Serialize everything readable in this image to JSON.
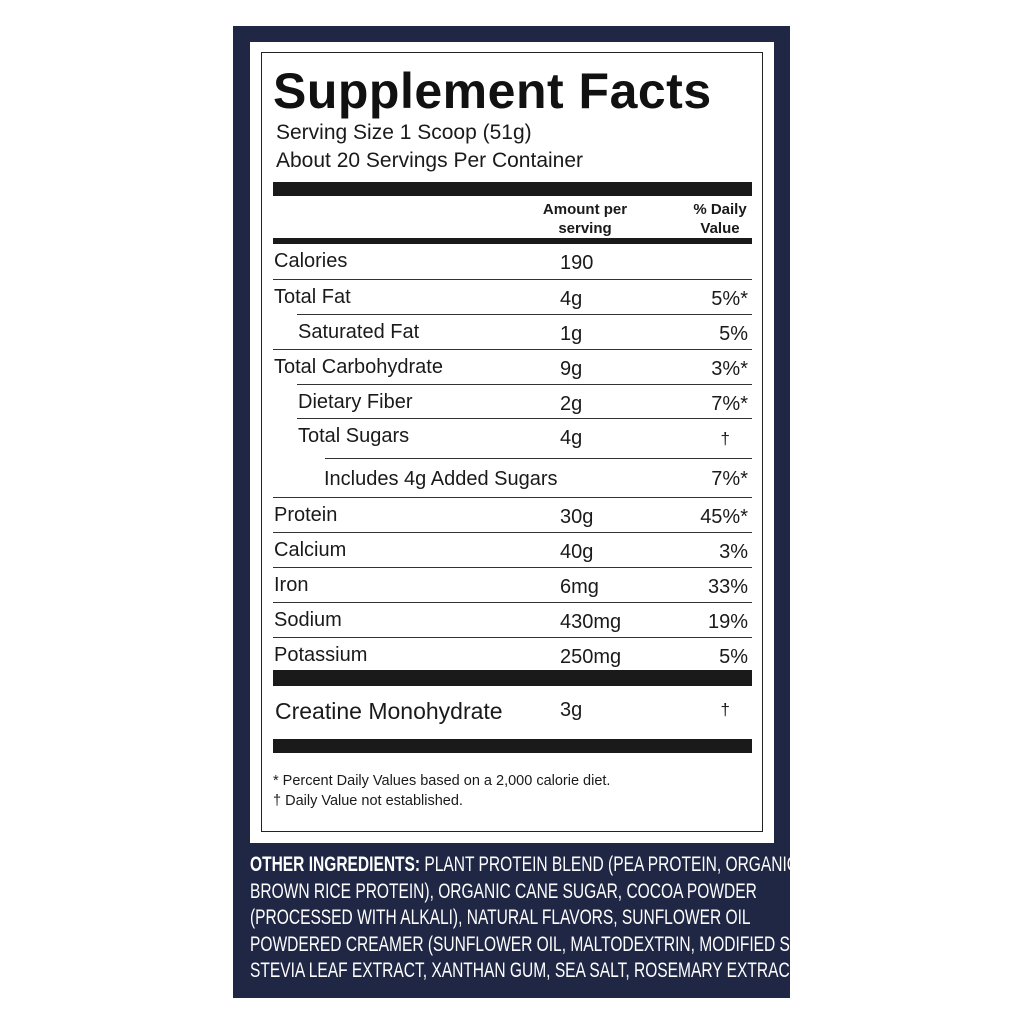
{
  "colors": {
    "navy": "#1f2745",
    "text": "#1a1a1a"
  },
  "label": {
    "title": "Supplement Facts",
    "serving_size": "Serving Size 1 Scoop (51g)",
    "servings_per_container": "About 20 Servings Per Container",
    "header_amount_line1": "Amount per",
    "header_amount_line2": "serving",
    "header_dv_line1": "% Daily",
    "header_dv_line2": "Value",
    "rows": [
      {
        "name": "Calories",
        "amount": "190",
        "dv": ""
      },
      {
        "name": "Total Fat",
        "amount": "4g",
        "dv": "5%*"
      },
      {
        "name": "Saturated Fat",
        "amount": "1g",
        "dv": "5%"
      },
      {
        "name": "Total Carbohydrate",
        "amount": "9g",
        "dv": "3%*"
      },
      {
        "name": "Dietary Fiber",
        "amount": "2g",
        "dv": "7%*"
      },
      {
        "name": "Total Sugars",
        "amount": "4g",
        "dv": "†"
      },
      {
        "name": "Includes 4g Added Sugars",
        "amount": "",
        "dv": "7%*"
      },
      {
        "name": "Protein",
        "amount": "30g",
        "dv": "45%*"
      },
      {
        "name": "Calcium",
        "amount": "40g",
        "dv": "3%"
      },
      {
        "name": "Iron",
        "amount": "6mg",
        "dv": "33%"
      },
      {
        "name": "Sodium",
        "amount": "430mg",
        "dv": "19%"
      },
      {
        "name": "Potassium",
        "amount": "250mg",
        "dv": "5%"
      }
    ],
    "creatine": {
      "name": "Creatine Monohydrate",
      "amount": "3g",
      "dv": "†"
    },
    "footnote1": "* Percent Daily Values based on a 2,000 calorie diet.",
    "footnote2": "† Daily Value not established."
  },
  "ingredients": {
    "heading": "OTHER INGREDIENTS:",
    "lines": [
      "PLANT PROTEIN BLEND (PEA PROTEIN, ORGANIC",
      "BROWN RICE PROTEIN), ORGANIC CANE SUGAR, COCOA POWDER",
      "(PROCESSED WITH ALKALI), NATURAL FLAVORS, SUNFLOWER OIL",
      "POWDERED CREAMER (SUNFLOWER OIL, MALTODEXTRIN, MODIFIED STARCH),",
      "STEVIA LEAF EXTRACT, XANTHAN GUM, SEA SALT, ROSEMARY EXTRACT."
    ]
  }
}
